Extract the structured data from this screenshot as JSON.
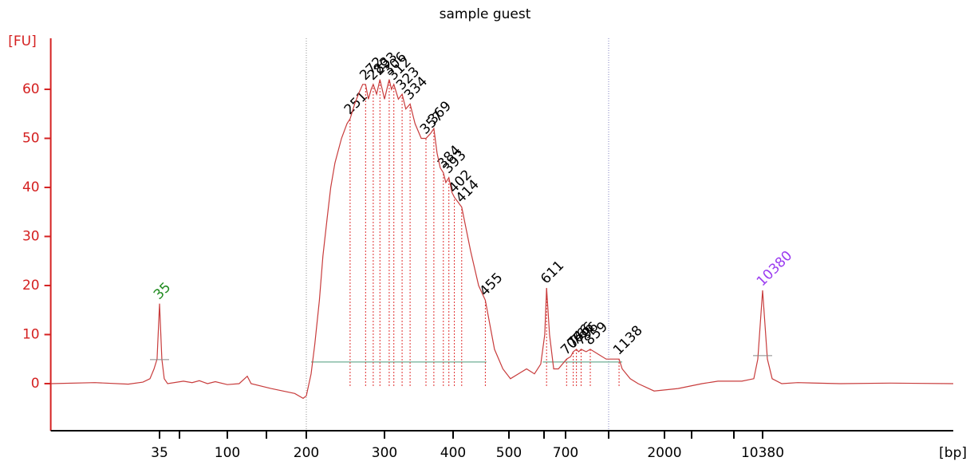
{
  "chart_data": {
    "type": "line",
    "title": "sample guest",
    "y_label": "[FU]",
    "x_label": "[bp]",
    "color": "#c83c3c",
    "axis_color": "#d42020",
    "xlim": [
      5,
      142000
    ],
    "xticks": [
      35,
      100,
      200,
      300,
      400,
      500,
      700,
      2000,
      10380
    ],
    "minor_xticks": [
      50,
      150,
      600,
      1000,
      3000,
      7000
    ],
    "ylim": [
      -9.6,
      70.4
    ],
    "yticks": [
      0,
      10,
      20,
      30,
      40,
      50,
      60
    ],
    "x": [
      5,
      11,
      20,
      26,
      29.5,
      31.7,
      33.5,
      35,
      36.5,
      38.1,
      40.4,
      53,
      60,
      66.7,
      75,
      84,
      100,
      113,
      123,
      128,
      155,
      184,
      195.5,
      200,
      205,
      209,
      214,
      218,
      223,
      227,
      232,
      240,
      247,
      251,
      257,
      262,
      268,
      272,
      276,
      280,
      283,
      288,
      293,
      300,
      306,
      309,
      312,
      318,
      323,
      328,
      334,
      341,
      350,
      357,
      364,
      369,
      374,
      379,
      384,
      388,
      393,
      398,
      402,
      408,
      414,
      429,
      443,
      455,
      472,
      488,
      504,
      525,
      548,
      571,
      590,
      603,
      611,
      624,
      643,
      665,
      706,
      730,
      746,
      766,
      780,
      796,
      830,
      859,
      918,
      980,
      1072,
      1138,
      1183,
      1306,
      1442,
      1758,
      2449,
      3693,
      5084,
      7809,
      9200,
      9720,
      10380,
      11085,
      11835,
      13500,
      16800,
      30000,
      60000,
      142000
    ],
    "values": [
      0,
      0.2,
      -0.1,
      0.3,
      1,
      3,
      5,
      16.3,
      5,
      1,
      0,
      0.5,
      0.2,
      0.6,
      0,
      0.4,
      -0.2,
      0,
      1.5,
      0,
      -1,
      -2,
      -3,
      -2.5,
      2,
      8,
      17,
      26,
      34,
      40,
      45,
      50,
      53,
      54,
      57,
      59,
      61,
      61,
      58,
      60,
      61,
      59,
      62,
      58,
      62,
      60,
      61,
      58,
      59,
      56,
      57,
      53,
      50,
      50,
      51,
      52,
      47,
      44,
      43,
      41,
      42,
      39,
      38,
      37,
      36,
      27,
      20,
      17,
      7,
      3,
      1,
      2,
      3,
      2,
      4,
      10,
      19.5,
      10,
      3,
      3,
      5,
      5.5,
      6.5,
      7,
      6.5,
      7,
      6.5,
      7,
      6,
      5,
      5,
      5,
      3,
      1,
      0,
      -1.5,
      -1,
      0,
      0.5,
      0.5,
      1,
      5,
      19,
      5,
      1,
      0,
      0.2,
      0,
      0.1,
      0
    ],
    "peaks": {
      "color": "#e03030",
      "x": [
        251,
        272,
        283,
        293,
        306,
        312,
        323,
        334,
        357,
        369,
        384,
        393,
        402,
        414,
        455,
        611,
        706,
        746,
        766,
        796,
        859,
        1138
      ],
      "y": [
        54,
        61,
        61,
        62,
        62,
        61,
        59,
        57,
        50,
        52,
        43,
        42,
        38,
        36,
        17,
        19.5,
        5,
        6.5,
        7,
        7,
        7,
        5
      ]
    },
    "lower_marker": {
      "x": 35,
      "y": 16.3,
      "color": "#1f8a1f"
    },
    "upper_marker": {
      "x": 10380,
      "y": 19,
      "color": "#9b3cf0"
    },
    "region": [
      200,
      1000
    ],
    "baselines": [
      {
        "x": [
          205,
          457
        ],
        "y": 4.4
      },
      {
        "x": [
          596,
          1183
        ],
        "y": 4.4
      }
    ]
  }
}
